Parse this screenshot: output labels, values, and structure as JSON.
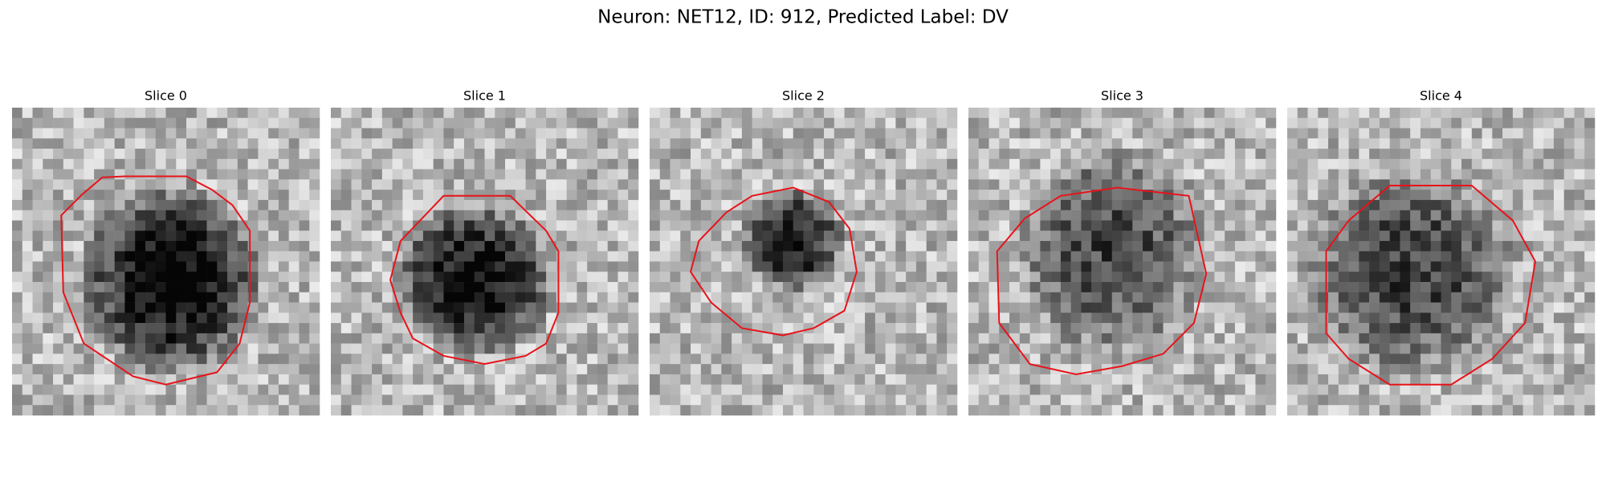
{
  "figure": {
    "title": "Neuron: NET12, ID: 912, Predicted Label: DV",
    "panels": [
      {
        "title": "Slice 0"
      },
      {
        "title": "Slice 1"
      },
      {
        "title": "Slice 2"
      },
      {
        "title": "Slice 3"
      },
      {
        "title": "Slice 4"
      }
    ]
  }
}
